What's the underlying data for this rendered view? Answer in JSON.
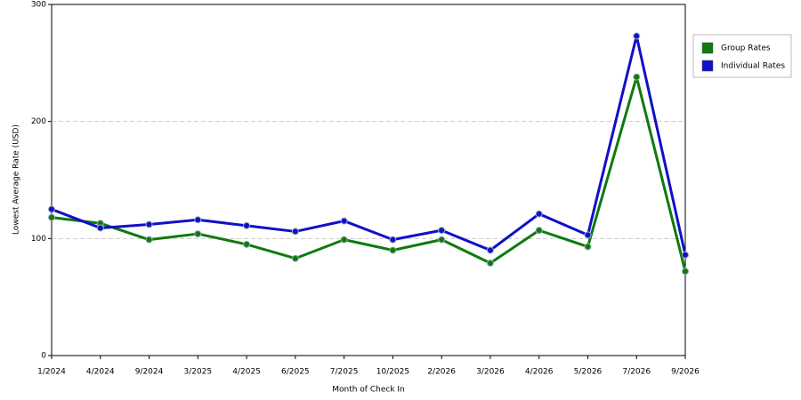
{
  "chart_data": {
    "type": "line",
    "x_label": "Month of Check In",
    "y_label": "Lowest Average Rate (USD)",
    "categories": [
      "1/2024",
      "4/2024",
      "9/2024",
      "3/2025",
      "4/2025",
      "6/2025",
      "7/2025",
      "10/2025",
      "2/2026",
      "3/2026",
      "4/2026",
      "5/2026",
      "7/2026",
      "9/2026"
    ],
    "series": [
      {
        "name": "Group Rates",
        "color": "#0f7a0f",
        "values": [
          118,
          113,
          99,
          104,
          95,
          83,
          99,
          90,
          99,
          79,
          107,
          93,
          238,
          72
        ]
      },
      {
        "name": "Individual Rates",
        "color": "#1010c8",
        "values": [
          125,
          109,
          112,
          116,
          111,
          106,
          115,
          99,
          107,
          90,
          121,
          103,
          273,
          86
        ]
      }
    ],
    "ylim": [
      0,
      300
    ],
    "yticks": [
      0,
      100,
      200,
      300
    ],
    "grid": true,
    "legend": "right"
  }
}
